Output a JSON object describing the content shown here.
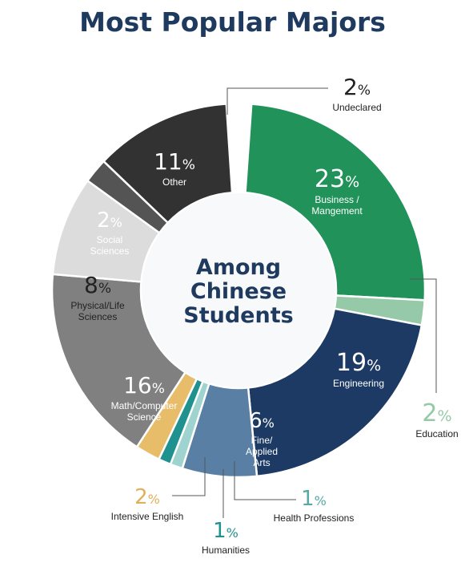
{
  "title": "Most Popular Majors",
  "center_label": [
    "Among",
    "Chinese",
    "Students"
  ],
  "chart_data": {
    "type": "pie",
    "title": "Most Popular Majors",
    "subtitle": "Among Chinese Students",
    "slices": [
      {
        "label": "Business / Mangement",
        "value": 23,
        "color": "#21935a"
      },
      {
        "label": "Education",
        "value": 2,
        "color": "#96c9a7"
      },
      {
        "label": "Engineering",
        "value": 19,
        "color": "#1c3a64"
      },
      {
        "label": "Fine/ Applied Arts",
        "value": 6,
        "color": "#5a7fa5"
      },
      {
        "label": "Health Professions",
        "value": 1,
        "color": "#9fd3cf"
      },
      {
        "label": "Humanities",
        "value": 1,
        "color": "#1f918e"
      },
      {
        "label": "Intensive English",
        "value": 2,
        "color": "#e7bd6a"
      },
      {
        "label": "Math/Computer Science",
        "value": 16,
        "color": "#808080"
      },
      {
        "label": "Physical/Life Sciences",
        "value": 8,
        "color": "#dcdcdc"
      },
      {
        "label": "Social Sciences",
        "value": 2,
        "color": "#545454"
      },
      {
        "label": "Other",
        "value": 11,
        "color": "#323232"
      },
      {
        "label": "Undeclared",
        "value": 2,
        "color": "#ffffff"
      }
    ],
    "label_colors": {
      "Education": "#96c9a7",
      "Health Professions": "#55aaa6",
      "Humanities": "#1f918e",
      "Intensive English": "#e0b058"
    }
  }
}
